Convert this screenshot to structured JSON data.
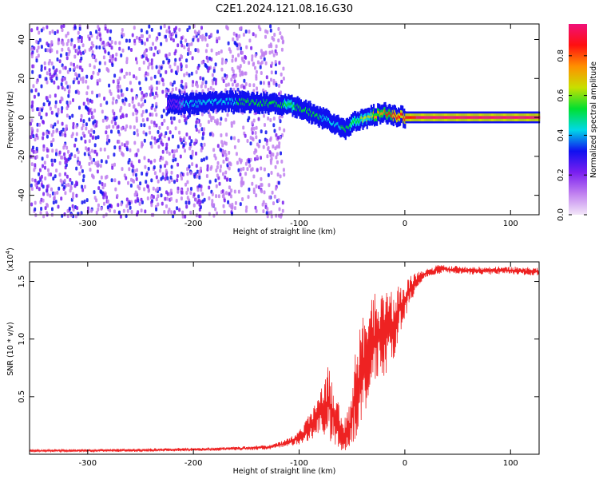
{
  "title": "C2E1.2024.121.08.16.G30",
  "chart_data": [
    {
      "type": "heatmap",
      "xlabel": "Height of straight line (km)",
      "ylabel": "Frequency (Hz)",
      "xlim": [
        -355,
        127
      ],
      "ylim": [
        -50,
        48
      ],
      "x_ticks": [
        -300,
        -200,
        -100,
        0,
        100
      ],
      "x_tick_labels": [
        "-300",
        "-200",
        "-100",
        "0",
        "100"
      ],
      "y_ticks": [
        -40,
        -20,
        0,
        20,
        40
      ],
      "y_tick_labels": [
        "-40",
        "-20",
        "0",
        "20",
        "40"
      ],
      "colorbar": {
        "label": "Normalized spectral amplitude",
        "range": [
          0,
          0.96
        ],
        "ticks": [
          0,
          0.2,
          0.4,
          0.6,
          0.8
        ],
        "tick_labels": [
          "0.0",
          "0.2",
          "0.4",
          "0.6",
          "0.8"
        ],
        "colormap": [
          "#f2e6f8",
          "#c080f0",
          "#7a1ff0",
          "#1010f0",
          "#00d8e8",
          "#00e030",
          "#c8e000",
          "#ff9000",
          "#ff1010",
          "#f0107a"
        ]
      },
      "noise_region_x": [
        -355,
        -135
      ],
      "ridge": {
        "x": [
          -225,
          -200,
          -175,
          -150,
          -125,
          -110,
          -95,
          -85,
          -75,
          -65,
          -58,
          -50,
          -40,
          -30,
          -20,
          -10,
          0,
          30,
          60,
          100,
          127
        ],
        "y": [
          7,
          7,
          8,
          8,
          7,
          6,
          4,
          1,
          -1,
          -4,
          -6,
          -3,
          -1,
          1,
          2,
          1,
          0,
          0,
          0,
          0,
          0
        ],
        "peak_amplitude": [
          0.35,
          0.4,
          0.45,
          0.5,
          0.5,
          0.55,
          0.5,
          0.5,
          0.45,
          0.45,
          0.5,
          0.55,
          0.6,
          0.7,
          0.8,
          0.85,
          0.9,
          0.92,
          0.93,
          0.94,
          0.94
        ]
      },
      "grid": false
    },
    {
      "type": "line",
      "xlabel": "Height of straight line (km)",
      "ylabel": "SNR (10 * v/v)",
      "y_multiplier_label": "(x10",
      "y_multiplier_exponent": "4",
      "y_multiplier_close": ")",
      "xlim": [
        -355,
        127
      ],
      "ylim": [
        0,
        1.67
      ],
      "x_ticks": [
        -300,
        -200,
        -100,
        0,
        100
      ],
      "x_tick_labels": [
        "-300",
        "-200",
        "-100",
        "0",
        "100"
      ],
      "y_ticks": [
        0.5,
        1.0,
        1.5
      ],
      "y_tick_labels": [
        "0.5",
        "1.0",
        "1.5"
      ],
      "series": [
        {
          "color": "#ee2222",
          "envelope": {
            "x": [
              -355,
              -250,
              -175,
              -130,
              -115,
              -100,
              -90,
              -80,
              -72,
              -65,
              -58,
              -52,
              -48,
              -44,
              -40,
              -35,
              -30,
              -25,
              -20,
              -15,
              -10,
              -5,
              0,
              5,
              10,
              15,
              20,
              25,
              30,
              35,
              40,
              60,
              80,
              100,
              127
            ],
            "low": [
              0.02,
              0.02,
              0.03,
              0.04,
              0.06,
              0.08,
              0.12,
              0.18,
              0.12,
              0.05,
              0.02,
              0.05,
              0.12,
              0.18,
              0.28,
              0.42,
              0.55,
              0.62,
              0.68,
              0.72,
              0.85,
              1.05,
              1.15,
              1.3,
              1.4,
              1.48,
              1.53,
              1.55,
              1.56,
              1.57,
              1.57,
              1.56,
              1.56,
              1.56,
              1.55
            ],
            "high": [
              0.04,
              0.05,
              0.06,
              0.08,
              0.12,
              0.2,
              0.35,
              0.55,
              0.78,
              0.52,
              0.28,
              0.45,
              0.8,
              1.05,
              1.2,
              1.3,
              1.4,
              1.45,
              1.5,
              1.42,
              1.4,
              1.48,
              1.52,
              1.55,
              1.57,
              1.6,
              1.61,
              1.62,
              1.64,
              1.65,
              1.64,
              1.63,
              1.63,
              1.63,
              1.62
            ]
          }
        }
      ],
      "grid": false
    }
  ]
}
